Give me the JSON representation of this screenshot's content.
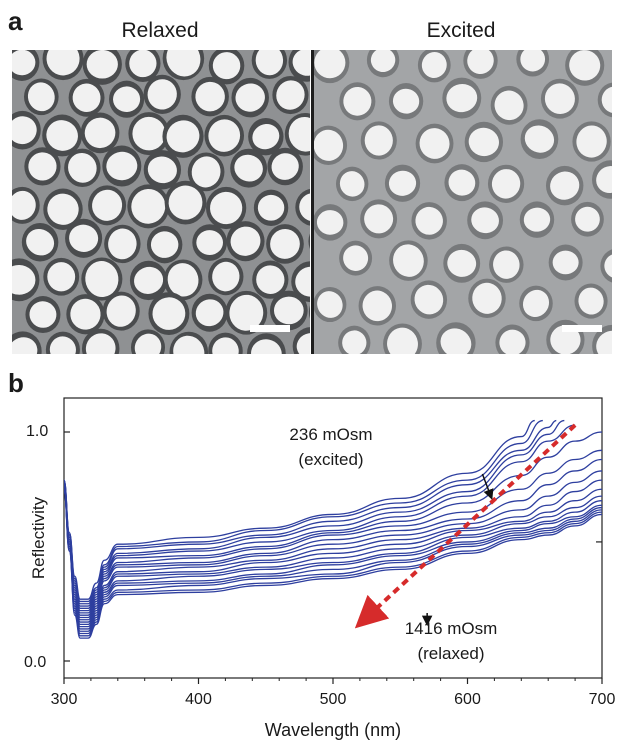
{
  "figure": {
    "panel_a_letter": "a",
    "panel_b_letter": "b",
    "micrographs": [
      {
        "title": "Relaxed",
        "pattern": "dense close-packed bright pores with dark rims"
      },
      {
        "title": "Excited",
        "pattern": "sparser bright pores on gray background"
      }
    ],
    "colors": {
      "relaxed_bg": "#8f9193",
      "excited_bg": "#a3a5a7",
      "pore": "#f1f1f1",
      "curve": "#2e3f9f",
      "arrow": "#d62b2b"
    }
  },
  "chart_data": {
    "type": "line",
    "xlabel": "Wavelength (nm)",
    "ylabel": "Reflectivity",
    "xlim": [
      300,
      700
    ],
    "ylim": [
      0.0,
      1.0
    ],
    "x_ticks": [
      300,
      400,
      500,
      600,
      700
    ],
    "y_tick_labels": [
      "1.0",
      "0.0"
    ],
    "curve_count": 18,
    "annotations": [
      {
        "text_line1": "236 mOsm",
        "text_line2": "(excited)",
        "points_to": {
          "x": 620,
          "y": 0.76
        }
      },
      {
        "text_line1": "1416 mOsm",
        "text_line2": "(relaxed)",
        "points_to": {
          "x": 570,
          "y": 0.21
        }
      }
    ],
    "trend_arrow": {
      "from": {
        "x": 680,
        "y": 1.03
      },
      "to": {
        "x": 525,
        "y": 0.19
      },
      "style": "dashed",
      "color": "#d62b2b"
    },
    "series": [
      {
        "values": [
          [
            300,
            0.74
          ],
          [
            304,
            0.48
          ],
          [
            308,
            0.2
          ],
          [
            312,
            0.1
          ],
          [
            318,
            0.1
          ],
          [
            324,
            0.16
          ],
          [
            330,
            0.25
          ],
          [
            340,
            0.29
          ],
          [
            400,
            0.3
          ],
          [
            450,
            0.33
          ],
          [
            500,
            0.36
          ],
          [
            550,
            0.4
          ],
          [
            600,
            0.47
          ],
          [
            640,
            0.53
          ],
          [
            660,
            0.55
          ],
          [
            680,
            0.59
          ],
          [
            700,
            0.64
          ]
        ]
      },
      {
        "values": [
          [
            300,
            0.74
          ],
          [
            304,
            0.48
          ],
          [
            308,
            0.21
          ],
          [
            312,
            0.11
          ],
          [
            318,
            0.11
          ],
          [
            324,
            0.17
          ],
          [
            330,
            0.26
          ],
          [
            340,
            0.3
          ],
          [
            400,
            0.31
          ],
          [
            450,
            0.34
          ],
          [
            500,
            0.37
          ],
          [
            550,
            0.41
          ],
          [
            600,
            0.48
          ],
          [
            640,
            0.54
          ],
          [
            660,
            0.56
          ],
          [
            680,
            0.6
          ],
          [
            700,
            0.65
          ]
        ]
      },
      {
        "values": [
          [
            300,
            0.74
          ],
          [
            304,
            0.49
          ],
          [
            308,
            0.22
          ],
          [
            312,
            0.12
          ],
          [
            318,
            0.12
          ],
          [
            324,
            0.18
          ],
          [
            330,
            0.27
          ],
          [
            340,
            0.31
          ],
          [
            400,
            0.33
          ],
          [
            450,
            0.36
          ],
          [
            500,
            0.38
          ],
          [
            550,
            0.43
          ],
          [
            600,
            0.5
          ],
          [
            640,
            0.55
          ],
          [
            660,
            0.57
          ],
          [
            680,
            0.61
          ],
          [
            700,
            0.66
          ]
        ]
      },
      {
        "values": [
          [
            300,
            0.75
          ],
          [
            304,
            0.49
          ],
          [
            308,
            0.23
          ],
          [
            312,
            0.13
          ],
          [
            318,
            0.13
          ],
          [
            324,
            0.19
          ],
          [
            330,
            0.28
          ],
          [
            340,
            0.33
          ],
          [
            400,
            0.34
          ],
          [
            450,
            0.37
          ],
          [
            500,
            0.4
          ],
          [
            550,
            0.44
          ],
          [
            600,
            0.51
          ],
          [
            640,
            0.56
          ],
          [
            660,
            0.58
          ],
          [
            680,
            0.62
          ],
          [
            700,
            0.67
          ]
        ]
      },
      {
        "values": [
          [
            300,
            0.75
          ],
          [
            304,
            0.5
          ],
          [
            308,
            0.24
          ],
          [
            312,
            0.14
          ],
          [
            318,
            0.14
          ],
          [
            324,
            0.2
          ],
          [
            330,
            0.29
          ],
          [
            340,
            0.34
          ],
          [
            400,
            0.35
          ],
          [
            450,
            0.38
          ],
          [
            500,
            0.42
          ],
          [
            550,
            0.46
          ],
          [
            600,
            0.52
          ],
          [
            640,
            0.57
          ],
          [
            660,
            0.6
          ],
          [
            680,
            0.63
          ],
          [
            700,
            0.68
          ]
        ]
      },
      {
        "values": [
          [
            300,
            0.75
          ],
          [
            304,
            0.5
          ],
          [
            308,
            0.25
          ],
          [
            312,
            0.15
          ],
          [
            318,
            0.15
          ],
          [
            324,
            0.21
          ],
          [
            330,
            0.3
          ],
          [
            340,
            0.35
          ],
          [
            400,
            0.37
          ],
          [
            450,
            0.4
          ],
          [
            500,
            0.43
          ],
          [
            550,
            0.47
          ],
          [
            600,
            0.54
          ],
          [
            640,
            0.58
          ],
          [
            660,
            0.61
          ],
          [
            680,
            0.65
          ],
          [
            700,
            0.7
          ]
        ]
      },
      {
        "values": [
          [
            300,
            0.76
          ],
          [
            304,
            0.51
          ],
          [
            308,
            0.26
          ],
          [
            312,
            0.16
          ],
          [
            318,
            0.16
          ],
          [
            324,
            0.22
          ],
          [
            330,
            0.31
          ],
          [
            340,
            0.37
          ],
          [
            400,
            0.38
          ],
          [
            450,
            0.41
          ],
          [
            500,
            0.45
          ],
          [
            550,
            0.49
          ],
          [
            600,
            0.55
          ],
          [
            640,
            0.6
          ],
          [
            660,
            0.63
          ],
          [
            680,
            0.67
          ],
          [
            700,
            0.72
          ]
        ]
      },
      {
        "values": [
          [
            300,
            0.76
          ],
          [
            304,
            0.51
          ],
          [
            308,
            0.27
          ],
          [
            312,
            0.17
          ],
          [
            318,
            0.17
          ],
          [
            324,
            0.23
          ],
          [
            330,
            0.32
          ],
          [
            340,
            0.38
          ],
          [
            400,
            0.39
          ],
          [
            450,
            0.43
          ],
          [
            500,
            0.47
          ],
          [
            550,
            0.51
          ],
          [
            600,
            0.57
          ],
          [
            640,
            0.61
          ],
          [
            660,
            0.65
          ],
          [
            680,
            0.7
          ],
          [
            700,
            0.75
          ]
        ]
      },
      {
        "values": [
          [
            300,
            0.76
          ],
          [
            304,
            0.52
          ],
          [
            308,
            0.28
          ],
          [
            312,
            0.18
          ],
          [
            318,
            0.18
          ],
          [
            324,
            0.24
          ],
          [
            330,
            0.33
          ],
          [
            340,
            0.39
          ],
          [
            400,
            0.41
          ],
          [
            450,
            0.44
          ],
          [
            500,
            0.49
          ],
          [
            550,
            0.53
          ],
          [
            600,
            0.58
          ],
          [
            640,
            0.63
          ],
          [
            660,
            0.68
          ],
          [
            680,
            0.74
          ],
          [
            700,
            0.79
          ]
        ]
      },
      {
        "values": [
          [
            300,
            0.77
          ],
          [
            304,
            0.52
          ],
          [
            308,
            0.29
          ],
          [
            312,
            0.19
          ],
          [
            318,
            0.19
          ],
          [
            324,
            0.25
          ],
          [
            330,
            0.35
          ],
          [
            340,
            0.41
          ],
          [
            400,
            0.42
          ],
          [
            450,
            0.46
          ],
          [
            500,
            0.51
          ],
          [
            550,
            0.55
          ],
          [
            600,
            0.6
          ],
          [
            640,
            0.66
          ],
          [
            660,
            0.72
          ],
          [
            680,
            0.78
          ],
          [
            700,
            0.83
          ]
        ]
      },
      {
        "values": [
          [
            300,
            0.77
          ],
          [
            304,
            0.53
          ],
          [
            308,
            0.3
          ],
          [
            312,
            0.2
          ],
          [
            318,
            0.2
          ],
          [
            324,
            0.26
          ],
          [
            330,
            0.36
          ],
          [
            340,
            0.42
          ],
          [
            400,
            0.43
          ],
          [
            450,
            0.47
          ],
          [
            500,
            0.53
          ],
          [
            550,
            0.57
          ],
          [
            600,
            0.62
          ],
          [
            640,
            0.7
          ],
          [
            660,
            0.77
          ],
          [
            680,
            0.83
          ],
          [
            700,
            0.88
          ]
        ]
      },
      {
        "values": [
          [
            300,
            0.77
          ],
          [
            304,
            0.53
          ],
          [
            308,
            0.31
          ],
          [
            312,
            0.21
          ],
          [
            318,
            0.21
          ],
          [
            324,
            0.27
          ],
          [
            330,
            0.37
          ],
          [
            340,
            0.43
          ],
          [
            400,
            0.45
          ],
          [
            450,
            0.49
          ],
          [
            500,
            0.55
          ],
          [
            550,
            0.59
          ],
          [
            600,
            0.65
          ],
          [
            640,
            0.75
          ],
          [
            660,
            0.82
          ],
          [
            680,
            0.88
          ],
          [
            700,
            0.92
          ]
        ]
      },
      {
        "values": [
          [
            300,
            0.78
          ],
          [
            304,
            0.54
          ],
          [
            308,
            0.32
          ],
          [
            312,
            0.22
          ],
          [
            318,
            0.22
          ],
          [
            324,
            0.28
          ],
          [
            330,
            0.38
          ],
          [
            340,
            0.45
          ],
          [
            400,
            0.46
          ],
          [
            450,
            0.5
          ],
          [
            500,
            0.56
          ],
          [
            550,
            0.61
          ],
          [
            600,
            0.69
          ],
          [
            640,
            0.81
          ],
          [
            660,
            0.89
          ],
          [
            680,
            0.96
          ],
          [
            700,
            1.0
          ]
        ]
      },
      {
        "values": [
          [
            300,
            0.78
          ],
          [
            304,
            0.54
          ],
          [
            308,
            0.33
          ],
          [
            312,
            0.23
          ],
          [
            318,
            0.23
          ],
          [
            324,
            0.29
          ],
          [
            330,
            0.39
          ],
          [
            340,
            0.46
          ],
          [
            400,
            0.48
          ],
          [
            450,
            0.52
          ],
          [
            500,
            0.57
          ],
          [
            550,
            0.63
          ],
          [
            600,
            0.72
          ],
          [
            640,
            0.87
          ],
          [
            660,
            0.96
          ],
          [
            680,
            1.03
          ]
        ]
      },
      {
        "values": [
          [
            300,
            0.78
          ],
          [
            304,
            0.55
          ],
          [
            308,
            0.34
          ],
          [
            312,
            0.24
          ],
          [
            318,
            0.24
          ],
          [
            324,
            0.3
          ],
          [
            330,
            0.4
          ],
          [
            340,
            0.47
          ],
          [
            400,
            0.49
          ],
          [
            450,
            0.54
          ],
          [
            500,
            0.59
          ],
          [
            550,
            0.65
          ],
          [
            600,
            0.74
          ],
          [
            640,
            0.9
          ],
          [
            660,
            0.99
          ],
          [
            672,
            1.05
          ]
        ]
      },
      {
        "values": [
          [
            300,
            0.79
          ],
          [
            304,
            0.55
          ],
          [
            308,
            0.35
          ],
          [
            312,
            0.25
          ],
          [
            318,
            0.25
          ],
          [
            324,
            0.31
          ],
          [
            330,
            0.41
          ],
          [
            340,
            0.49
          ],
          [
            400,
            0.51
          ],
          [
            450,
            0.55
          ],
          [
            500,
            0.61
          ],
          [
            550,
            0.67
          ],
          [
            600,
            0.77
          ],
          [
            640,
            0.92
          ],
          [
            660,
            1.02
          ],
          [
            666,
            1.05
          ]
        ]
      },
      {
        "values": [
          [
            300,
            0.79
          ],
          [
            304,
            0.56
          ],
          [
            308,
            0.36
          ],
          [
            312,
            0.26
          ],
          [
            318,
            0.26
          ],
          [
            324,
            0.32
          ],
          [
            330,
            0.42
          ],
          [
            340,
            0.5
          ],
          [
            400,
            0.52
          ],
          [
            450,
            0.57
          ],
          [
            500,
            0.63
          ],
          [
            550,
            0.69
          ],
          [
            600,
            0.79
          ],
          [
            640,
            0.95
          ],
          [
            656,
            1.05
          ]
        ]
      },
      {
        "values": [
          [
            300,
            0.79
          ],
          [
            304,
            0.56
          ],
          [
            308,
            0.37
          ],
          [
            312,
            0.27
          ],
          [
            318,
            0.27
          ],
          [
            324,
            0.34
          ],
          [
            330,
            0.44
          ],
          [
            340,
            0.51
          ],
          [
            400,
            0.54
          ],
          [
            450,
            0.58
          ],
          [
            500,
            0.64
          ],
          [
            550,
            0.71
          ],
          [
            600,
            0.82
          ],
          [
            640,
            0.98
          ],
          [
            650,
            1.05
          ]
        ]
      }
    ]
  }
}
